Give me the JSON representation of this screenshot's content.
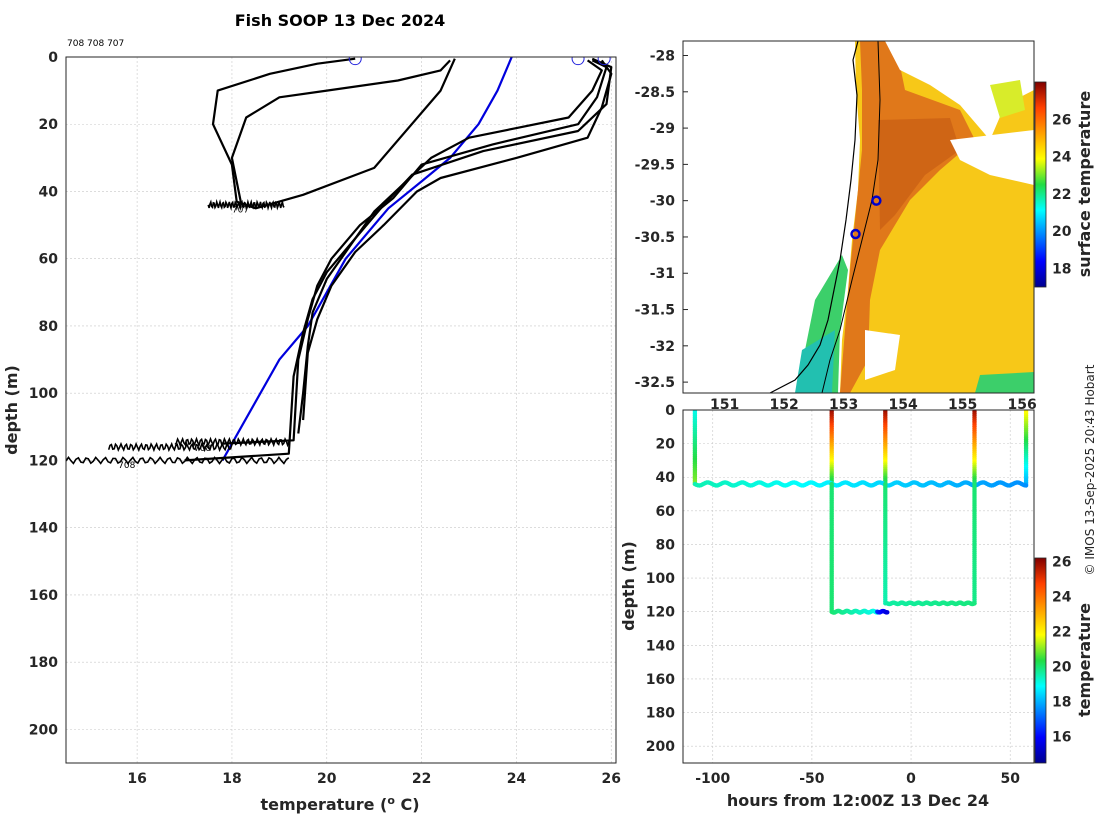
{
  "chart_data": [
    {
      "type": "line",
      "title": "Fish SOOP 13 Dec 2024",
      "corner_note": "708 708 707",
      "xlabel": "temperature (",
      "xlabel_sup": "o",
      "xlabel_end": " C)",
      "ylabel": "depth (m)",
      "xlim": [
        14.5,
        26.1
      ],
      "ylim": [
        0,
        210
      ],
      "xticks": [
        16,
        18,
        20,
        22,
        24,
        26
      ],
      "yticks": [
        0,
        20,
        40,
        60,
        80,
        100,
        120,
        140,
        160,
        180,
        200
      ],
      "profile_labels": [
        {
          "text": "707",
          "x": 18.0,
          "y": 45
        },
        {
          "text": "708",
          "x": 17.2,
          "y": 116
        },
        {
          "text": "708",
          "x": 15.6,
          "y": 121
        }
      ],
      "series": [
        {
          "name": "climatology",
          "color": "#0000dd",
          "x": [
            23.9,
            23.6,
            23.2,
            22.6,
            22.0,
            21.3,
            20.4,
            20.0,
            19.6,
            19.0,
            18.6,
            18.2,
            17.8
          ],
          "y": [
            0,
            10,
            20,
            30,
            37,
            45,
            60,
            70,
            80,
            90,
            100,
            110,
            120
          ]
        },
        {
          "name": "profile-707-a",
          "color": "#000000",
          "x": [
            20.6,
            19.8,
            18.8,
            17.7,
            17.6,
            18.0,
            18.1,
            18.5,
            19.5,
            21.0,
            22.4,
            22.7
          ],
          "y": [
            0.5,
            2,
            5,
            10,
            20,
            32,
            43,
            45,
            41,
            33,
            10,
            0.5
          ]
        },
        {
          "name": "profile-707-b",
          "color": "#000000",
          "x": [
            18.2,
            18.0,
            18.3,
            19.0,
            20.0,
            21.5,
            22.4,
            22.6
          ],
          "y": [
            44,
            30,
            18,
            12,
            10,
            7,
            4,
            1
          ]
        },
        {
          "name": "profile-708-a",
          "color": "#000000",
          "x": [
            25.6,
            25.9,
            25.7,
            25.3,
            23.5,
            22.0,
            21.4,
            20.7,
            20.1,
            19.8,
            19.6,
            19.4,
            19.3,
            17.8
          ],
          "y": [
            1,
            3,
            12,
            20,
            26,
            32,
            42,
            50,
            60,
            68,
            78,
            90,
            114,
            115
          ]
        },
        {
          "name": "profile-708-b",
          "color": "#000000",
          "x": [
            25.6,
            26.0,
            25.9,
            25.3,
            23.3,
            21.8,
            21.2,
            20.6,
            20.0,
            19.7,
            19.5,
            19.3,
            19.2,
            17.0
          ],
          "y": [
            0.5,
            3,
            14,
            22,
            28,
            35,
            44,
            54,
            64,
            72,
            82,
            95,
            118,
            120
          ]
        },
        {
          "name": "profile-708-c",
          "color": "#000000",
          "x": [
            25.5,
            25.8,
            25.6,
            25.1,
            23.0,
            22.2,
            21.6,
            21.0,
            20.5,
            20.0,
            19.7,
            19.6,
            19.5,
            19.4
          ],
          "y": [
            1,
            4,
            10,
            18,
            24,
            30,
            38,
            46,
            56,
            66,
            76,
            86,
            100,
            112
          ]
        },
        {
          "name": "profile-708-d",
          "color": "#000000",
          "x": [
            25.8,
            26.0,
            25.8,
            25.5,
            24.0,
            22.4,
            21.9,
            21.2,
            20.6,
            20.1,
            19.8,
            19.6,
            19.5
          ],
          "y": [
            1,
            5,
            15,
            24,
            30,
            36,
            40,
            50,
            58,
            68,
            78,
            88,
            108
          ]
        }
      ],
      "surface_markers": [
        20.6,
        25.3,
        25.85
      ]
    },
    {
      "type": "heatmap",
      "colorbar_label": "surface temperature",
      "colorbar_ticks": [
        18,
        20,
        22,
        24,
        26
      ],
      "colorbar_range": [
        17,
        28
      ],
      "lat_ticks": [
        -28,
        -28.5,
        -29,
        -29.5,
        -30,
        -30.5,
        -31,
        -31.5,
        -32,
        -32.5
      ],
      "lon_ticks": [
        "151",
        "152",
        "153",
        "154",
        "155",
        "156"
      ],
      "ylim": [
        -32.65,
        -27.8
      ],
      "xlim": [
        150.3,
        156.2
      ],
      "stations": [
        {
          "lon": 153.55,
          "lat": -30.0
        },
        {
          "lon": 153.2,
          "lat": -30.46
        }
      ]
    },
    {
      "type": "scatter",
      "xlabel": "hours from 12:00Z 13 Dec 24",
      "ylabel": "depth (m)",
      "colorbar_label": "temperature",
      "colorbar_ticks": [
        16,
        18,
        20,
        22,
        24,
        26
      ],
      "colorbar_range": [
        14.5,
        26.2
      ],
      "xlim": [
        -115,
        62
      ],
      "ylim": [
        0,
        210
      ],
      "xticks": [
        -100,
        -50,
        0,
        50
      ],
      "yticks": [
        0,
        20,
        40,
        60,
        80,
        100,
        120,
        140,
        160,
        180,
        200
      ],
      "tracks": [
        {
          "name": "tow-707",
          "x0": -109,
          "x1": 58,
          "depth": 44,
          "descents": [
            {
              "x": -109,
              "t_top": 19,
              "t_bottom": 21
            },
            {
              "x": -40,
              "t_top": 26,
              "t_bottom": 20
            },
            {
              "x": -13,
              "t_top": 26,
              "t_bottom": 20
            },
            {
              "x": 32,
              "t_top": 26,
              "t_bottom": 20
            },
            {
              "x": 58,
              "t_top": 22,
              "t_bottom": 18
            }
          ],
          "temp_start": 19.5,
          "temp_end": 17.6
        },
        {
          "name": "tow-708-a",
          "x0": -40,
          "x1": -12,
          "depth": 120,
          "temp_start": 20,
          "temp_end": 15.5
        },
        {
          "name": "tow-708-b",
          "x0": -12,
          "x1": 32,
          "depth": 115,
          "temp_start": 19.6,
          "temp_end": 19.9
        }
      ]
    }
  ],
  "credit": "© IMOS 13-Sep-2025 20:43 Hobart"
}
